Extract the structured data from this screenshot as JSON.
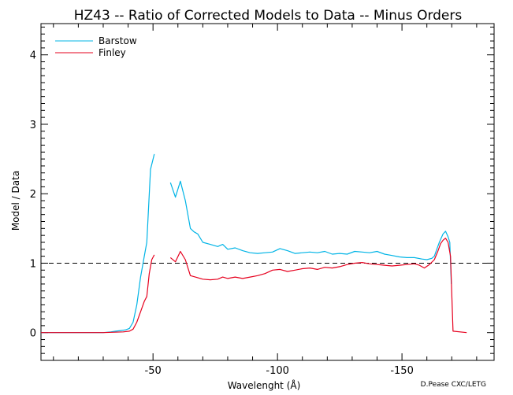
{
  "chart_data": {
    "type": "line",
    "title": "HZ43 -- Ratio of Corrected Models to Data -- Minus Orders",
    "xlabel": "Wavelenght (Å)",
    "ylabel": "Model / Data",
    "credit": "D.Pease CXC/LETG",
    "xlim": [
      -5,
      -187
    ],
    "ylim": [
      -0.4,
      4.45
    ],
    "xticks": [
      {
        "value": -50,
        "label": "-50"
      },
      {
        "value": -100,
        "label": "-100"
      },
      {
        "value": -150,
        "label": "-150"
      }
    ],
    "yticks": [
      {
        "value": 0,
        "label": "0"
      },
      {
        "value": 1,
        "label": "1"
      },
      {
        "value": 2,
        "label": "2"
      },
      {
        "value": 3,
        "label": "3"
      },
      {
        "value": 4,
        "label": "4"
      }
    ],
    "reference_line": {
      "y": 1,
      "style": "dashed",
      "color": "#000000"
    },
    "legend_position": "top-left",
    "series": [
      {
        "name": "Barstow",
        "color": "#00b4e6",
        "segments": [
          [
            [
              -5,
              0
            ],
            [
              -30,
              0
            ],
            [
              -33,
              0.01
            ],
            [
              -35,
              0.02
            ],
            [
              -37,
              0.03
            ],
            [
              -39,
              0.04
            ],
            [
              -40.5,
              0.06
            ],
            [
              -42,
              0.15
            ],
            [
              -43.5,
              0.4
            ],
            [
              -45,
              0.8
            ],
            [
              -46.5,
              1.1
            ],
            [
              -47.5,
              1.3
            ],
            [
              -49,
              2.35
            ],
            [
              -50.5,
              2.57
            ]
          ],
          [
            [
              -57,
              2.16
            ],
            [
              -59,
              1.95
            ],
            [
              -61,
              2.18
            ],
            [
              -63,
              1.9
            ],
            [
              -65,
              1.5
            ],
            [
              -66.5,
              1.45
            ],
            [
              -68,
              1.42
            ],
            [
              -70,
              1.3
            ],
            [
              -73,
              1.27
            ],
            [
              -76,
              1.24
            ],
            [
              -78,
              1.27
            ],
            [
              -80,
              1.2
            ],
            [
              -83,
              1.22
            ],
            [
              -86,
              1.18
            ],
            [
              -89,
              1.15
            ],
            [
              -92,
              1.14
            ],
            [
              -95,
              1.15
            ],
            [
              -98,
              1.16
            ],
            [
              -101,
              1.21
            ],
            [
              -104,
              1.18
            ],
            [
              -107,
              1.14
            ],
            [
              -110,
              1.15
            ],
            [
              -113,
              1.16
            ],
            [
              -116,
              1.15
            ],
            [
              -119,
              1.17
            ],
            [
              -122,
              1.13
            ],
            [
              -125,
              1.14
            ],
            [
              -128,
              1.13
            ],
            [
              -131,
              1.17
            ],
            [
              -134,
              1.16
            ],
            [
              -137,
              1.15
            ],
            [
              -140,
              1.17
            ],
            [
              -143,
              1.13
            ],
            [
              -146,
              1.11
            ],
            [
              -149,
              1.09
            ],
            [
              -152,
              1.08
            ],
            [
              -155,
              1.08
            ],
            [
              -158,
              1.06
            ],
            [
              -160,
              1.05
            ],
            [
              -162,
              1.07
            ],
            [
              -163,
              1.1
            ],
            [
              -164,
              1.2
            ],
            [
              -165,
              1.3
            ],
            [
              -166.5,
              1.42
            ],
            [
              -167.5,
              1.46
            ],
            [
              -168.5,
              1.38
            ],
            [
              -169.2,
              1.3
            ],
            [
              -169.8,
              0.7
            ]
          ]
        ]
      },
      {
        "name": "Finley",
        "color": "#e6001e",
        "segments": [
          [
            [
              -5,
              0
            ],
            [
              -30,
              0
            ],
            [
              -38,
              0.01
            ],
            [
              -40.5,
              0.02
            ],
            [
              -42,
              0.05
            ],
            [
              -43.5,
              0.15
            ],
            [
              -45,
              0.3
            ],
            [
              -46.5,
              0.45
            ],
            [
              -47.5,
              0.52
            ],
            [
              -48.5,
              0.85
            ],
            [
              -49.5,
              1.05
            ],
            [
              -50.5,
              1.12
            ]
          ],
          [
            [
              -57,
              1.08
            ],
            [
              -59,
              1.02
            ],
            [
              -61,
              1.17
            ],
            [
              -63,
              1.05
            ],
            [
              -65,
              0.82
            ],
            [
              -67,
              0.8
            ],
            [
              -70,
              0.77
            ],
            [
              -73,
              0.76
            ],
            [
              -76,
              0.77
            ],
            [
              -78,
              0.8
            ],
            [
              -80,
              0.78
            ],
            [
              -83,
              0.8
            ],
            [
              -86,
              0.78
            ],
            [
              -89,
              0.8
            ],
            [
              -92,
              0.82
            ],
            [
              -95,
              0.85
            ],
            [
              -98,
              0.9
            ],
            [
              -101,
              0.91
            ],
            [
              -104,
              0.88
            ],
            [
              -107,
              0.9
            ],
            [
              -110,
              0.92
            ],
            [
              -113,
              0.93
            ],
            [
              -116,
              0.91
            ],
            [
              -119,
              0.94
            ],
            [
              -122,
              0.93
            ],
            [
              -125,
              0.95
            ],
            [
              -128,
              0.98
            ],
            [
              -131,
              1.0
            ],
            [
              -134,
              1.01
            ],
            [
              -137,
              0.99
            ],
            [
              -140,
              0.98
            ],
            [
              -143,
              0.97
            ],
            [
              -146,
              0.96
            ],
            [
              -149,
              0.97
            ],
            [
              -152,
              0.98
            ],
            [
              -155,
              0.99
            ],
            [
              -157,
              0.97
            ],
            [
              -159,
              0.93
            ],
            [
              -161,
              0.98
            ],
            [
              -163,
              1.05
            ],
            [
              -164.5,
              1.18
            ],
            [
              -165.5,
              1.28
            ],
            [
              -166.5,
              1.33
            ],
            [
              -167.5,
              1.36
            ],
            [
              -168.5,
              1.3
            ],
            [
              -169.5,
              1.1
            ],
            [
              -170.5,
              0.02
            ],
            [
              -176,
              0.0
            ]
          ]
        ]
      }
    ]
  }
}
